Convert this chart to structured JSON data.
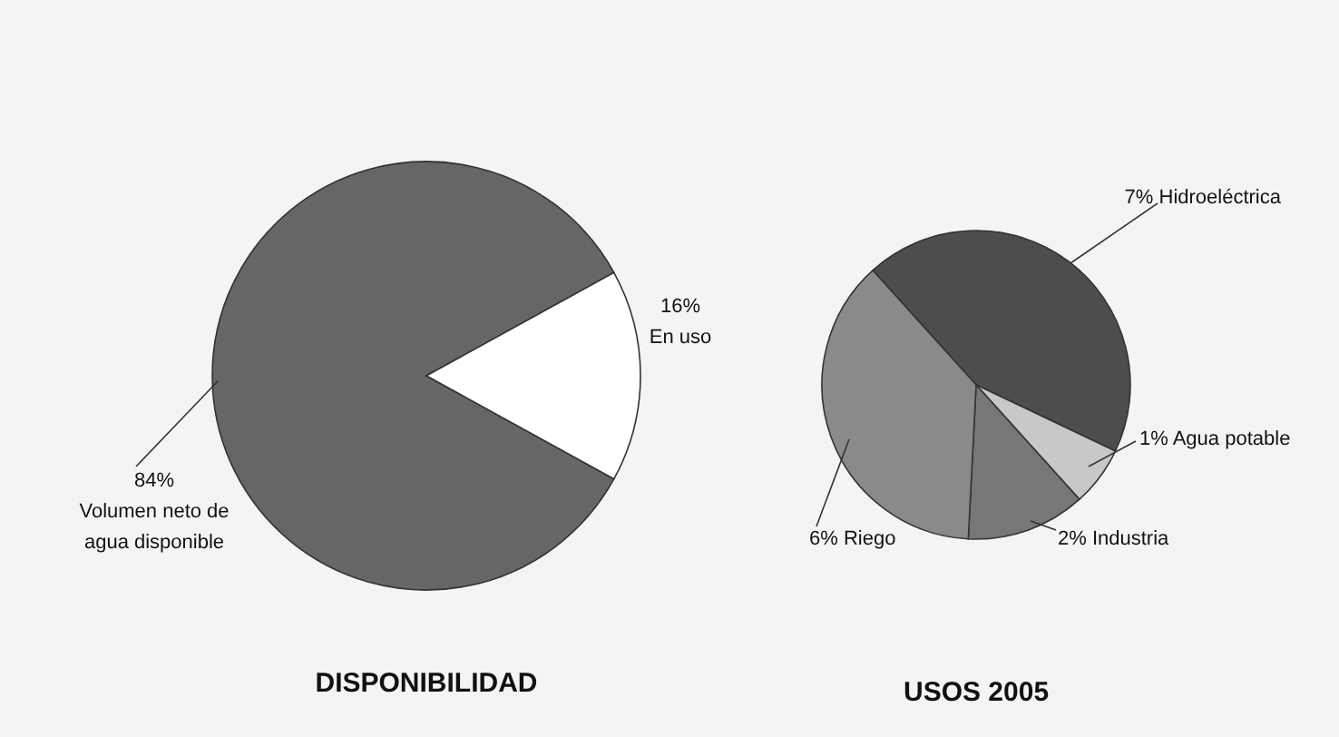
{
  "chart_data": [
    {
      "type": "pie",
      "title": "DISPONIBILIDAD",
      "categories": [
        "Volumen neto de agua disponible",
        "En uso"
      ],
      "values": [
        84,
        16
      ],
      "value_labels": [
        "84%",
        "16%"
      ],
      "colors": [
        "#666666",
        "#ffffff"
      ]
    },
    {
      "type": "pie",
      "title": "USOS 2005",
      "categories": [
        "Hidroeléctrica",
        "Agua potable",
        "Industria",
        "Riego"
      ],
      "values": [
        7,
        1,
        2,
        6
      ],
      "value_labels": [
        "7%",
        "1%",
        "2%",
        "6%"
      ],
      "colors": [
        "#4d4d4d",
        "#c8c8c8",
        "#777777",
        "#8a8a8a"
      ]
    }
  ]
}
